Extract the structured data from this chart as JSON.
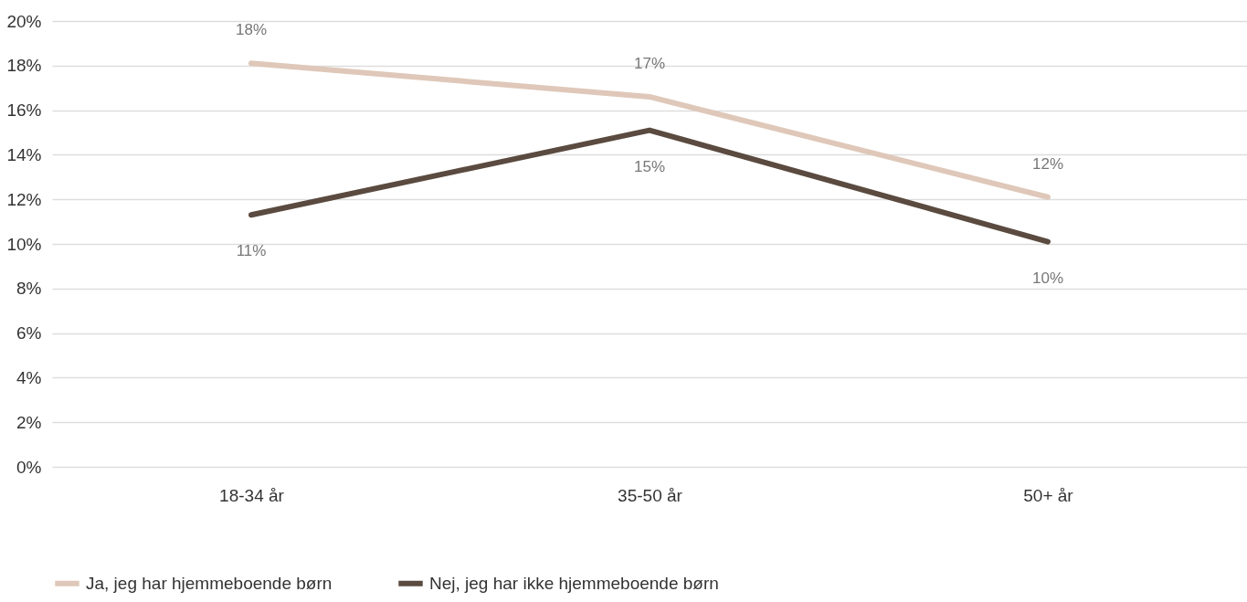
{
  "chart_data": {
    "type": "line",
    "categories": [
      "18-34 år",
      "35-50 år",
      "50+ år"
    ],
    "series": [
      {
        "name": "Ja, jeg har hjemmeboende børn",
        "color": "#dfc8b9",
        "values": [
          18.1,
          16.6,
          12.1
        ],
        "value_labels": [
          "18%",
          "17%",
          "12%"
        ]
      },
      {
        "name": "Nej, jeg har ikke hjemmeboende børn",
        "color": "#5a4a3f",
        "values": [
          11.3,
          15.1,
          10.1
        ],
        "value_labels": [
          "11%",
          "15%",
          "10%"
        ]
      }
    ],
    "ylim": [
      0,
      20
    ],
    "yticks": [
      {
        "value": 0,
        "label": "0%"
      },
      {
        "value": 2,
        "label": "2%"
      },
      {
        "value": 4,
        "label": "4%"
      },
      {
        "value": 6,
        "label": "6%"
      },
      {
        "value": 8,
        "label": "8%"
      },
      {
        "value": 10,
        "label": "10%"
      },
      {
        "value": 12,
        "label": "12%"
      },
      {
        "value": 14,
        "label": "14%"
      },
      {
        "value": 16,
        "label": "16%"
      },
      {
        "value": 18,
        "label": "18%"
      },
      {
        "value": 20,
        "label": "20%"
      }
    ],
    "grid": "y",
    "legend": "bottom",
    "marker": "none",
    "line_style": "solid"
  }
}
